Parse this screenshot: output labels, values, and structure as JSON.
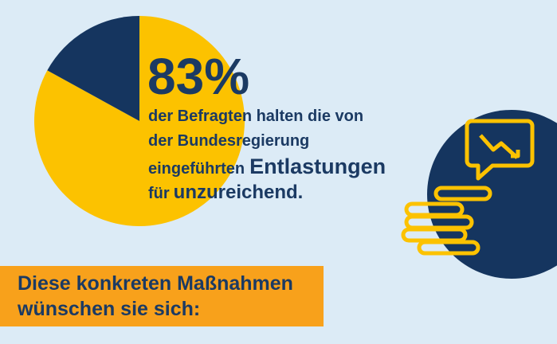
{
  "chart_data": {
    "type": "pie",
    "values": [
      83,
      17
    ],
    "value_labels": [
      "83%",
      null
    ],
    "colors": [
      "#fcc200",
      "#15355f"
    ],
    "description": [
      [
        "der Befragten halten die von"
      ],
      [
        "der Bundesregierung"
      ],
      [
        "eingeführten",
        "Entlastungen"
      ],
      [
        "für",
        "unzureichend."
      ]
    ],
    "banner": [
      "Diese konkreten Maßnahmen",
      "wünschen sie sich:"
    ]
  }
}
